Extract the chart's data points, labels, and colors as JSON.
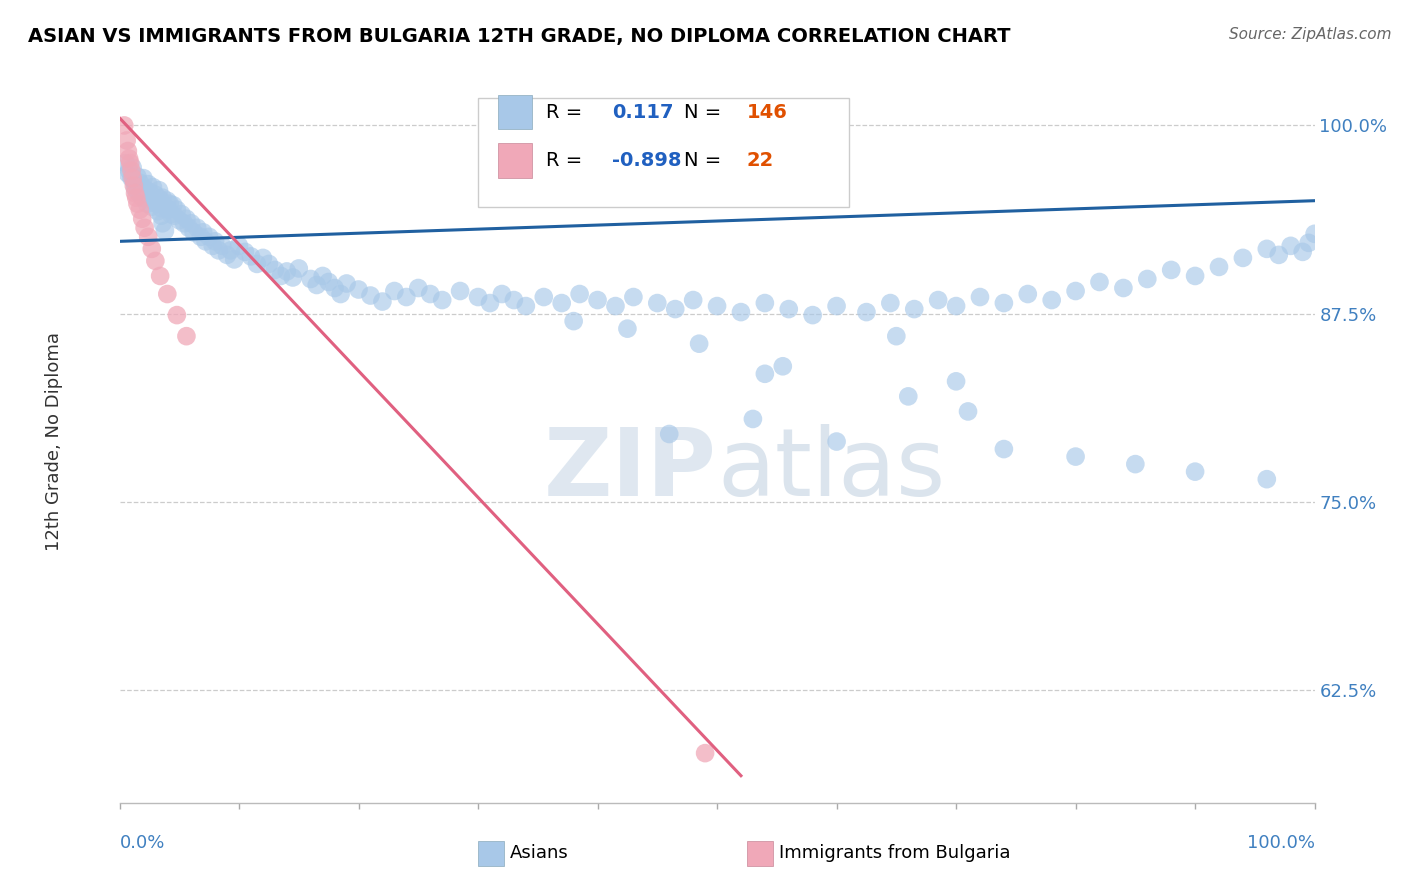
{
  "title": "ASIAN VS IMMIGRANTS FROM BULGARIA 12TH GRADE, NO DIPLOMA CORRELATION CHART",
  "source": "Source: ZipAtlas.com",
  "ylabel": "12th Grade, No Diploma",
  "ylabel_right_ticks": [
    "100.0%",
    "87.5%",
    "75.0%",
    "62.5%"
  ],
  "ylabel_right_vals": [
    1.0,
    0.875,
    0.75,
    0.625
  ],
  "watermark": "ZIPatlas",
  "legend": {
    "asian_R": 0.117,
    "asian_N": 146,
    "bulgaria_R": -0.898,
    "bulgaria_N": 22
  },
  "xlim": [
    0.0,
    1.0
  ],
  "ylim": [
    0.55,
    1.03
  ],
  "blue_color": "#A8C8E8",
  "pink_color": "#F0A8B8",
  "blue_line_color": "#2060A0",
  "pink_line_color": "#E06080",
  "blue_N_color": "#E05000",
  "pink_N_color": "#E05000",
  "R_val_color": "#2060C0",
  "right_tick_color": "#4080C0",
  "asian_x": [
    0.005,
    0.007,
    0.008,
    0.01,
    0.011,
    0.012,
    0.013,
    0.015,
    0.015,
    0.016,
    0.017,
    0.018,
    0.019,
    0.02,
    0.021,
    0.022,
    0.023,
    0.024,
    0.025,
    0.026,
    0.027,
    0.028,
    0.03,
    0.031,
    0.032,
    0.033,
    0.034,
    0.035,
    0.036,
    0.038,
    0.04,
    0.041,
    0.042,
    0.043,
    0.045,
    0.046,
    0.048,
    0.05,
    0.052,
    0.054,
    0.056,
    0.058,
    0.06,
    0.062,
    0.065,
    0.068,
    0.07,
    0.072,
    0.075,
    0.078,
    0.08,
    0.083,
    0.086,
    0.09,
    0.093,
    0.096,
    0.1,
    0.105,
    0.11,
    0.115,
    0.12,
    0.125,
    0.13,
    0.135,
    0.14,
    0.145,
    0.15,
    0.16,
    0.165,
    0.17,
    0.175,
    0.18,
    0.185,
    0.19,
    0.2,
    0.21,
    0.22,
    0.23,
    0.24,
    0.25,
    0.26,
    0.27,
    0.285,
    0.3,
    0.31,
    0.32,
    0.33,
    0.34,
    0.355,
    0.37,
    0.385,
    0.4,
    0.415,
    0.43,
    0.45,
    0.465,
    0.48,
    0.5,
    0.52,
    0.54,
    0.56,
    0.58,
    0.6,
    0.625,
    0.645,
    0.665,
    0.685,
    0.7,
    0.72,
    0.74,
    0.76,
    0.78,
    0.8,
    0.82,
    0.84,
    0.86,
    0.88,
    0.9,
    0.92,
    0.94,
    0.96,
    0.97,
    0.98,
    0.99,
    0.995,
    1.0,
    0.035,
    0.036,
    0.038,
    0.38,
    0.425,
    0.54,
    0.555,
    0.485,
    0.65,
    0.7,
    0.66,
    0.71,
    0.53,
    0.46,
    0.6,
    0.74,
    0.8,
    0.85,
    0.9,
    0.96
  ],
  "asian_y": [
    0.975,
    0.968,
    0.97,
    0.965,
    0.972,
    0.963,
    0.958,
    0.966,
    0.96,
    0.955,
    0.962,
    0.957,
    0.952,
    0.965,
    0.958,
    0.953,
    0.948,
    0.961,
    0.956,
    0.951,
    0.946,
    0.959,
    0.954,
    0.948,
    0.943,
    0.957,
    0.951,
    0.945,
    0.952,
    0.946,
    0.95,
    0.944,
    0.948,
    0.941,
    0.947,
    0.94,
    0.944,
    0.937,
    0.941,
    0.935,
    0.938,
    0.932,
    0.935,
    0.929,
    0.932,
    0.926,
    0.929,
    0.923,
    0.926,
    0.92,
    0.923,
    0.917,
    0.92,
    0.914,
    0.917,
    0.911,
    0.92,
    0.916,
    0.913,
    0.908,
    0.912,
    0.908,
    0.904,
    0.9,
    0.903,
    0.899,
    0.905,
    0.898,
    0.894,
    0.9,
    0.896,
    0.892,
    0.888,
    0.895,
    0.891,
    0.887,
    0.883,
    0.89,
    0.886,
    0.892,
    0.888,
    0.884,
    0.89,
    0.886,
    0.882,
    0.888,
    0.884,
    0.88,
    0.886,
    0.882,
    0.888,
    0.884,
    0.88,
    0.886,
    0.882,
    0.878,
    0.884,
    0.88,
    0.876,
    0.882,
    0.878,
    0.874,
    0.88,
    0.876,
    0.882,
    0.878,
    0.884,
    0.88,
    0.886,
    0.882,
    0.888,
    0.884,
    0.89,
    0.896,
    0.892,
    0.898,
    0.904,
    0.9,
    0.906,
    0.912,
    0.918,
    0.914,
    0.92,
    0.916,
    0.922,
    0.928,
    0.94,
    0.935,
    0.93,
    0.87,
    0.865,
    0.835,
    0.84,
    0.855,
    0.86,
    0.83,
    0.82,
    0.81,
    0.805,
    0.795,
    0.79,
    0.785,
    0.78,
    0.775,
    0.77,
    0.765
  ],
  "bulgaria_x": [
    0.004,
    0.006,
    0.007,
    0.008,
    0.009,
    0.01,
    0.011,
    0.012,
    0.013,
    0.014,
    0.015,
    0.017,
    0.019,
    0.021,
    0.024,
    0.027,
    0.03,
    0.034,
    0.04,
    0.048,
    0.056,
    0.49
  ],
  "bulgaria_y": [
    1.0,
    0.99,
    0.983,
    0.978,
    0.975,
    0.97,
    0.965,
    0.96,
    0.955,
    0.952,
    0.948,
    0.944,
    0.938,
    0.932,
    0.926,
    0.918,
    0.91,
    0.9,
    0.888,
    0.874,
    0.86,
    0.583
  ],
  "blue_line_x": [
    0.0,
    1.0
  ],
  "blue_line_y": [
    0.923,
    0.95
  ],
  "pink_line_x": [
    0.0,
    0.52
  ],
  "pink_line_y": [
    1.005,
    0.568
  ]
}
